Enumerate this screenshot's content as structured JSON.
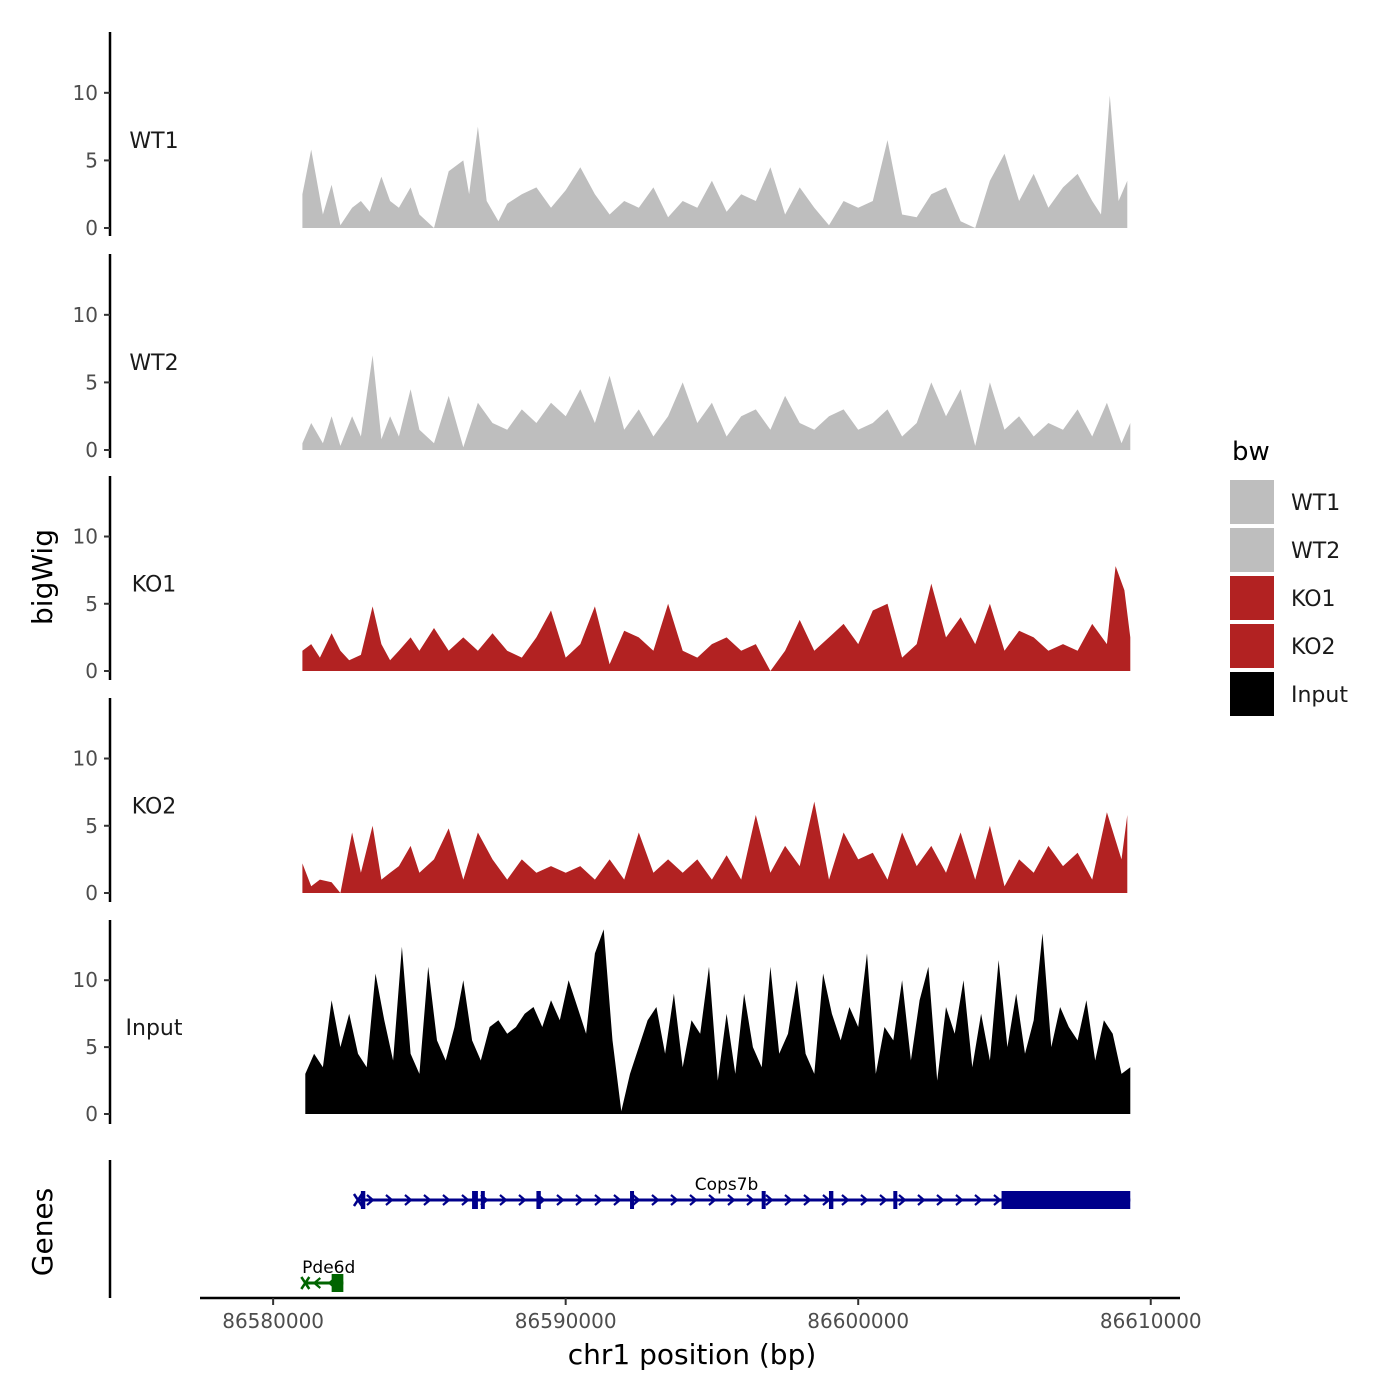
{
  "chart_data": {
    "type": "area",
    "title": "",
    "xlabel": "chr1 position (bp)",
    "ylabel": "bigWig",
    "genes_axis_label": "Genes",
    "xlim": [
      86577500,
      86611000
    ],
    "x_ticks": [
      86580000,
      86590000,
      86600000,
      86610000
    ],
    "x_tick_labels": [
      "86580000",
      "86590000",
      "86600000",
      "86610000"
    ],
    "ylim": [
      0,
      14.5
    ],
    "y_ticks": [
      0,
      5,
      10
    ],
    "y_tick_labels": [
      "0",
      "5",
      "10"
    ],
    "tracks": [
      {
        "name": "WT1",
        "color": "#bebebe",
        "x": [
          86581000,
          86581300,
          86581700,
          86582000,
          86582300,
          86582700,
          86583000,
          86583300,
          86583700,
          86584000,
          86584300,
          86584700,
          86585000,
          86585500,
          86586000,
          86586500,
          86586700,
          86587000,
          86587300,
          86587700,
          86588000,
          86588500,
          86589000,
          86589500,
          86590000,
          86590500,
          86591000,
          86591500,
          86592000,
          86592500,
          86593000,
          86593500,
          86594000,
          86594500,
          86595000,
          86595500,
          86596000,
          86596500,
          86597000,
          86597500,
          86598000,
          86598500,
          86599000,
          86599500,
          86600000,
          86600500,
          86601000,
          86601500,
          86602000,
          86602500,
          86603000,
          86603500,
          86604000,
          86604500,
          86605000,
          86605500,
          86606000,
          86606500,
          86607000,
          86607500,
          86608000,
          86608300,
          86608600,
          86608900,
          86609200
        ],
        "values": [
          2.5,
          5.8,
          1.0,
          3.2,
          0.2,
          1.5,
          2.0,
          1.2,
          3.8,
          2.0,
          1.5,
          3.0,
          1.0,
          0.0,
          4.2,
          5.0,
          2.5,
          7.5,
          2.0,
          0.5,
          1.8,
          2.5,
          3.0,
          1.5,
          2.8,
          4.5,
          2.5,
          1.0,
          2.0,
          1.5,
          3.0,
          0.8,
          2.0,
          1.5,
          3.5,
          1.2,
          2.5,
          2.0,
          4.5,
          1.0,
          3.0,
          1.5,
          0.2,
          2.0,
          1.5,
          2.0,
          6.5,
          1.0,
          0.8,
          2.5,
          3.0,
          0.5,
          0.0,
          3.5,
          5.5,
          2.0,
          4.0,
          1.5,
          3.0,
          4.0,
          2.0,
          1.0,
          9.8,
          2.0,
          3.5
        ]
      },
      {
        "name": "WT2",
        "color": "#bebebe",
        "x": [
          86581000,
          86581300,
          86581700,
          86582000,
          86582300,
          86582700,
          86583000,
          86583400,
          86583700,
          86584000,
          86584300,
          86584700,
          86585000,
          86585500,
          86586000,
          86586500,
          86587000,
          86587500,
          86588000,
          86588500,
          86589000,
          86589500,
          86590000,
          86590500,
          86591000,
          86591500,
          86592000,
          86592500,
          86593000,
          86593500,
          86594000,
          86594500,
          86595000,
          86595500,
          86596000,
          86596500,
          86597000,
          86597500,
          86598000,
          86598500,
          86599000,
          86599500,
          86600000,
          86600500,
          86601000,
          86601500,
          86602000,
          86602500,
          86603000,
          86603500,
          86604000,
          86604500,
          86605000,
          86605500,
          86606000,
          86606500,
          86607000,
          86607500,
          86608000,
          86608500,
          86609000,
          86609300
        ],
        "values": [
          0.5,
          2.0,
          0.5,
          2.5,
          0.3,
          2.5,
          1.0,
          7.0,
          0.8,
          2.5,
          1.0,
          4.5,
          1.5,
          0.5,
          4.0,
          0.2,
          3.5,
          2.0,
          1.5,
          3.0,
          2.0,
          3.5,
          2.5,
          4.5,
          2.0,
          5.5,
          1.5,
          3.0,
          1.0,
          2.5,
          5.0,
          2.0,
          3.5,
          1.0,
          2.5,
          3.0,
          1.5,
          4.0,
          2.0,
          1.5,
          2.5,
          3.0,
          1.5,
          2.0,
          3.0,
          1.0,
          2.0,
          5.0,
          2.5,
          4.5,
          0.3,
          5.0,
          1.5,
          2.5,
          1.0,
          2.0,
          1.5,
          3.0,
          1.0,
          3.5,
          0.5,
          2.0
        ]
      },
      {
        "name": "KO1",
        "color": "#b22222",
        "x": [
          86581000,
          86581300,
          86581600,
          86582000,
          86582300,
          86582600,
          86583000,
          86583400,
          86583700,
          86584000,
          86584300,
          86584700,
          86585000,
          86585500,
          86586000,
          86586500,
          86587000,
          86587500,
          86588000,
          86588500,
          86589000,
          86589500,
          86590000,
          86590500,
          86591000,
          86591500,
          86592000,
          86592500,
          86593000,
          86593500,
          86594000,
          86594500,
          86595000,
          86595500,
          86596000,
          86596500,
          86597000,
          86597500,
          86598000,
          86598500,
          86599000,
          86599500,
          86600000,
          86600500,
          86601000,
          86601500,
          86602000,
          86602500,
          86603000,
          86603500,
          86604000,
          86604500,
          86605000,
          86605500,
          86606000,
          86606500,
          86607000,
          86607500,
          86608000,
          86608500,
          86608800,
          86609100,
          86609300
        ],
        "values": [
          1.5,
          2.0,
          1.0,
          2.8,
          1.5,
          0.8,
          1.2,
          4.8,
          2.0,
          0.8,
          1.5,
          2.5,
          1.5,
          3.2,
          1.5,
          2.5,
          1.5,
          2.8,
          1.5,
          1.0,
          2.5,
          4.5,
          1.0,
          2.0,
          4.8,
          0.5,
          3.0,
          2.5,
          1.5,
          5.0,
          1.5,
          1.0,
          2.0,
          2.5,
          1.5,
          2.0,
          0.0,
          1.5,
          3.8,
          1.5,
          2.5,
          3.5,
          2.0,
          4.5,
          5.0,
          1.0,
          2.0,
          6.5,
          2.5,
          4.0,
          2.0,
          5.0,
          1.5,
          3.0,
          2.5,
          1.5,
          2.0,
          1.5,
          3.5,
          2.0,
          7.8,
          6.0,
          2.5
        ]
      },
      {
        "name": "KO2",
        "color": "#b22222",
        "x": [
          86581000,
          86581300,
          86581600,
          86582000,
          86582300,
          86582700,
          86583000,
          86583400,
          86583700,
          86584000,
          86584300,
          86584700,
          86585000,
          86585500,
          86586000,
          86586500,
          86587000,
          86587500,
          86588000,
          86588500,
          86589000,
          86589500,
          86590000,
          86590500,
          86591000,
          86591500,
          86592000,
          86592500,
          86593000,
          86593500,
          86594000,
          86594500,
          86595000,
          86595500,
          86596000,
          86596500,
          86597000,
          86597500,
          86598000,
          86598500,
          86599000,
          86599500,
          86600000,
          86600500,
          86601000,
          86601500,
          86602000,
          86602500,
          86603000,
          86603500,
          86604000,
          86604500,
          86605000,
          86605500,
          86606000,
          86606500,
          86607000,
          86607500,
          86608000,
          86608500,
          86609000,
          86609200
        ],
        "values": [
          2.2,
          0.5,
          1.0,
          0.8,
          0.0,
          4.5,
          1.5,
          5.0,
          1.0,
          1.5,
          2.0,
          3.5,
          1.5,
          2.5,
          4.8,
          1.0,
          4.5,
          2.5,
          1.0,
          2.5,
          1.5,
          2.0,
          1.5,
          2.0,
          1.0,
          2.5,
          1.0,
          4.5,
          1.5,
          2.5,
          1.5,
          2.5,
          1.0,
          2.8,
          1.0,
          5.8,
          1.5,
          3.5,
          2.0,
          6.8,
          1.0,
          4.5,
          2.5,
          3.0,
          1.0,
          4.5,
          2.0,
          3.5,
          1.5,
          4.5,
          1.0,
          5.0,
          0.5,
          2.5,
          1.5,
          3.5,
          2.0,
          3.0,
          1.0,
          6.0,
          2.5,
          5.8
        ]
      },
      {
        "name": "Input",
        "color": "#000000",
        "x": [
          86581100,
          86581400,
          86581700,
          86582000,
          86582300,
          86582600,
          86582900,
          86583200,
          86583500,
          86583800,
          86584100,
          86584400,
          86584700,
          86585000,
          86585300,
          86585600,
          86585900,
          86586200,
          86586500,
          86586800,
          86587100,
          86587400,
          86587700,
          86588000,
          86588300,
          86588600,
          86588900,
          86589200,
          86589500,
          86589800,
          86590100,
          86590400,
          86590700,
          86591000,
          86591300,
          86591600,
          86591900,
          86592200,
          86592500,
          86592800,
          86593100,
          86593400,
          86593700,
          86594000,
          86594300,
          86594600,
          86594900,
          86595200,
          86595500,
          86595800,
          86596100,
          86596400,
          86596700,
          86597000,
          86597300,
          86597600,
          86597900,
          86598200,
          86598500,
          86598800,
          86599100,
          86599400,
          86599700,
          86600000,
          86600300,
          86600600,
          86600900,
          86601200,
          86601500,
          86601800,
          86602100,
          86602400,
          86602700,
          86603000,
          86603300,
          86603600,
          86603900,
          86604200,
          86604500,
          86604800,
          86605100,
          86605400,
          86605700,
          86606000,
          86606300,
          86606600,
          86606900,
          86607200,
          86607500,
          86607800,
          86608100,
          86608400,
          86608700,
          86609000,
          86609300
        ],
        "values": [
          3.0,
          4.5,
          3.5,
          8.5,
          5.0,
          7.5,
          4.5,
          3.5,
          10.5,
          7.0,
          4.0,
          12.5,
          4.5,
          3.0,
          11.0,
          5.5,
          4.0,
          6.5,
          10.0,
          5.5,
          4.0,
          6.5,
          7.0,
          6.0,
          6.5,
          7.5,
          8.0,
          6.5,
          8.5,
          7.0,
          10.0,
          8.0,
          6.0,
          12.0,
          13.8,
          5.5,
          0.2,
          3.0,
          5.0,
          7.0,
          8.0,
          4.5,
          9.0,
          3.5,
          7.0,
          6.0,
          11.0,
          2.5,
          7.5,
          3.0,
          9.0,
          5.0,
          3.5,
          11.0,
          4.5,
          6.0,
          10.0,
          4.5,
          3.0,
          10.5,
          7.5,
          5.5,
          8.0,
          6.5,
          12.0,
          3.0,
          6.5,
          5.5,
          10.0,
          4.0,
          8.5,
          11.0,
          2.5,
          8.0,
          6.0,
          10.0,
          3.5,
          7.5,
          4.0,
          11.5,
          5.0,
          9.0,
          4.5,
          7.0,
          13.5,
          5.0,
          8.0,
          6.5,
          5.5,
          8.5,
          4.0,
          7.0,
          6.0,
          3.0,
          3.5
        ]
      }
    ],
    "genes": [
      {
        "name": "Cops7b",
        "strand": "+",
        "color": "#00008b",
        "row": 1,
        "start": 86582900,
        "end": 86609300,
        "exons": [
          [
            86583000,
            86583150
          ],
          [
            86586800,
            86587000
          ],
          [
            86587100,
            86587200
          ],
          [
            86589000,
            86589150
          ],
          [
            86592200,
            86592260
          ],
          [
            86596700,
            86596760
          ],
          [
            86599000,
            86599150
          ],
          [
            86601200,
            86601260
          ]
        ],
        "utr_block": [
          86604900,
          86609300
        ]
      },
      {
        "name": "Pde6d",
        "strand": "-",
        "color": "#006400",
        "row": 2,
        "start": 86581100,
        "end": 86582400,
        "exons": [
          [
            86582000,
            86582200
          ],
          [
            86582200,
            86582400
          ]
        ],
        "utr_block": null
      }
    ],
    "legend": {
      "title": "bw",
      "placement": "right",
      "entries": [
        {
          "label": "WT1",
          "color": "#bebebe"
        },
        {
          "label": "WT2",
          "color": "#bebebe"
        },
        {
          "label": "KO1",
          "color": "#b22222"
        },
        {
          "label": "KO2",
          "color": "#b22222"
        },
        {
          "label": "Input",
          "color": "#000000"
        }
      ]
    }
  }
}
